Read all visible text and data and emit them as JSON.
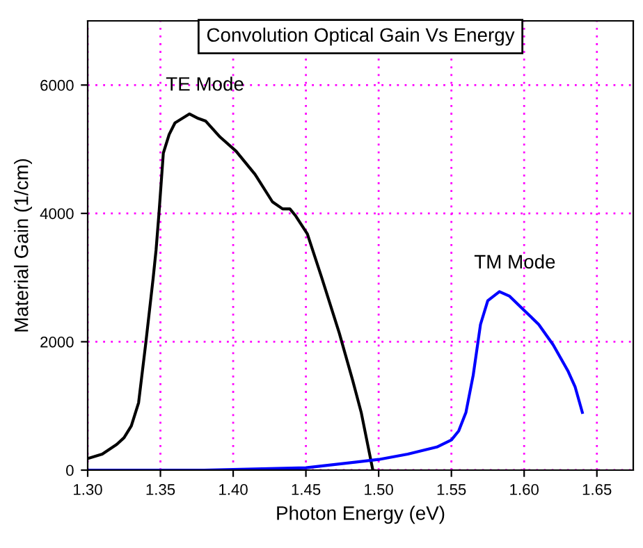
{
  "chart_data": {
    "type": "line",
    "title": "Convolution Optical Gain Vs Energy",
    "xlabel": "Photon Energy (eV)",
    "ylabel": "Material Gain (1/cm)",
    "xlim": [
      1.3,
      1.675
    ],
    "ylim": [
      0,
      7000
    ],
    "xticks": [
      {
        "value": 1.3,
        "label": "1.30"
      },
      {
        "value": 1.35,
        "label": "1.35"
      },
      {
        "value": 1.4,
        "label": "1.40"
      },
      {
        "value": 1.45,
        "label": "1.45"
      },
      {
        "value": 1.5,
        "label": "1.50"
      },
      {
        "value": 1.55,
        "label": "1.55"
      },
      {
        "value": 1.6,
        "label": "1.60"
      },
      {
        "value": 1.65,
        "label": "1.65"
      }
    ],
    "yticks": [
      0,
      2000,
      4000,
      6000
    ],
    "grid": true,
    "marker": "none",
    "line_style": "solid",
    "series": [
      {
        "name": "TE Mode",
        "color": "#000000",
        "x": [
          1.3,
          1.31,
          1.32,
          1.325,
          1.33,
          1.335,
          1.34,
          1.345,
          1.347,
          1.349,
          1.352,
          1.356,
          1.36,
          1.37,
          1.376,
          1.381,
          1.391,
          1.402,
          1.415,
          1.427,
          1.434,
          1.439,
          1.443,
          1.451,
          1.461,
          1.473,
          1.482,
          1.488,
          1.496
        ],
        "values": [
          180,
          250,
          400,
          505,
          690,
          1050,
          1990,
          2990,
          3430,
          4000,
          4940,
          5230,
          5410,
          5550,
          5480,
          5440,
          5190,
          4970,
          4610,
          4180,
          4070,
          4070,
          3960,
          3680,
          2990,
          2130,
          1410,
          900,
          0
        ]
      },
      {
        "name": "TM Mode",
        "color": "#0000ff",
        "x": [
          1.3,
          1.38,
          1.45,
          1.5,
          1.52,
          1.54,
          1.55,
          1.555,
          1.56,
          1.565,
          1.57,
          1.575,
          1.583,
          1.59,
          1.6,
          1.61,
          1.62,
          1.63,
          1.635,
          1.64
        ],
        "values": [
          0,
          0,
          36,
          166,
          250,
          360,
          470,
          610,
          900,
          1480,
          2270,
          2640,
          2780,
          2710,
          2490,
          2270,
          1950,
          1550,
          1300,
          900
        ]
      }
    ]
  }
}
